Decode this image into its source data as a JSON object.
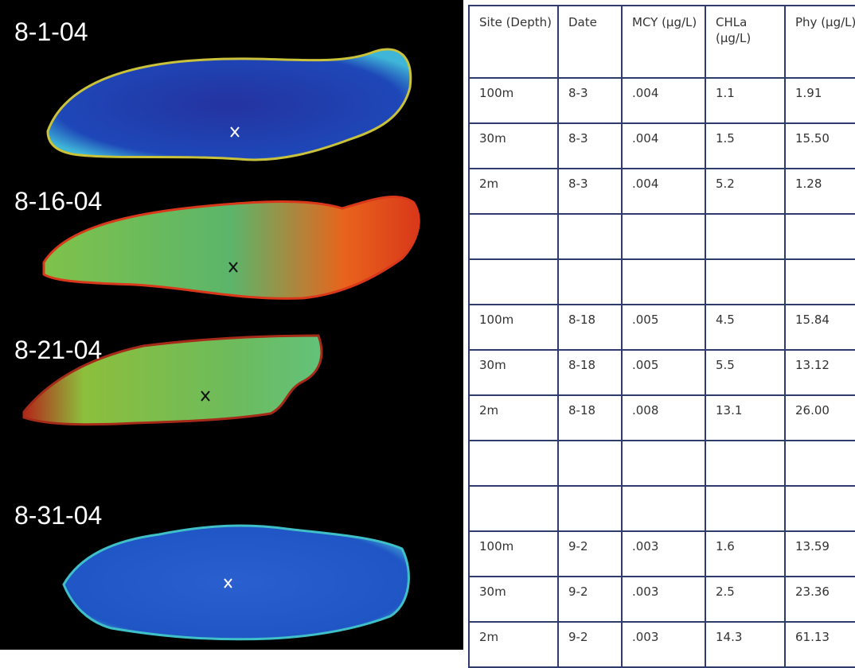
{
  "images": [
    {
      "label": "8-1-04"
    },
    {
      "label": "8-16-04"
    },
    {
      "label": "8-21-04"
    },
    {
      "label": "8-31-04"
    }
  ],
  "table": {
    "header": [
      "Site (Depth)",
      "Date",
      "MCY (µg/L)",
      "CHLa (µg/L)",
      "Phy (µg/L)"
    ],
    "groups": [
      {
        "rows": [
          [
            "100m",
            "8-3",
            ".004",
            "1.1",
            "1.91"
          ],
          [
            "30m",
            "8-3",
            ".004",
            "1.5",
            "15.50"
          ],
          [
            "2m",
            "8-3",
            ".004",
            "5.2",
            "1.28"
          ]
        ]
      },
      {
        "rows": [
          [
            "100m",
            "8-18",
            ".005",
            "4.5",
            "15.84"
          ],
          [
            "30m",
            "8-18",
            ".005",
            "5.5",
            "13.12"
          ],
          [
            "2m",
            "8-18",
            ".008",
            "13.1",
            "26.00"
          ]
        ]
      },
      {
        "rows": [
          [
            "100m",
            "9-2",
            ".003",
            "1.6",
            "13.59"
          ],
          [
            "30m",
            "9-2",
            ".003",
            "2.5",
            "23.36"
          ],
          [
            "2m",
            "9-2",
            ".003",
            "14.3",
            "61.13"
          ]
        ]
      }
    ]
  }
}
